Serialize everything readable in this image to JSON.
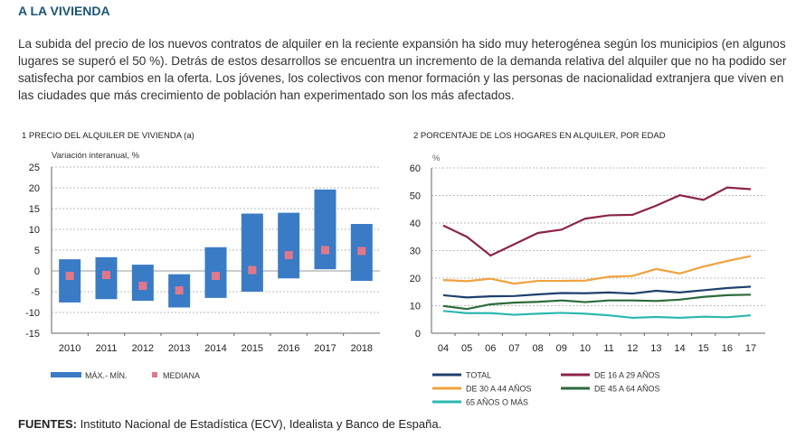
{
  "section_title": "A LA VIVIENDA",
  "paragraph": "La subida del precio de los nuevos contratos de alquiler en la reciente expansión ha sido muy heterogénea según los municipios (en algunos lugares se superó el 50 %). Detrás de estos desarrollos se encuentra un incremento de la demanda relativa del alquiler que no ha podido ser satisfecha por cambios en la oferta. Los jóvenes, los colectivos con menor formación y las personas de nacionalidad extranjera que viven en las ciudades que más crecimiento de población han experimentado son los más afectados.",
  "footer": {
    "label": "FUENTES:",
    "text": " Instituto Nacional de Estadística (ECV), Idealista y Banco de España."
  },
  "chart_data": [
    {
      "type": "bar",
      "title": "1  PRECIO DEL ALQUILER DE VIVIENDA (a)",
      "ylabel": "Variación interanual, %",
      "ylim": [
        -15,
        25
      ],
      "yticks": [
        25,
        20,
        15,
        10,
        5,
        0,
        -5,
        -10,
        -15
      ],
      "grid": true,
      "categories": [
        "2010",
        "2011",
        "2012",
        "2013",
        "2014",
        "2015",
        "2016",
        "2017",
        "2018"
      ],
      "series": [
        {
          "name": "MÁX.- MÍN.",
          "color": "#3a7bc6",
          "max": [
            2.8,
            3.3,
            1.5,
            -0.8,
            5.7,
            13.8,
            14.0,
            19.6,
            11.3
          ],
          "min": [
            -7.6,
            -6.8,
            -7.2,
            -8.8,
            -6.5,
            -5.0,
            -1.8,
            0.4,
            -2.4
          ]
        },
        {
          "name": "MEDIANA",
          "color": "#e0788a",
          "values": [
            -1.2,
            -1.0,
            -3.6,
            -4.7,
            -1.2,
            0.2,
            3.8,
            5.0,
            4.8
          ]
        }
      ],
      "legend_placement": "bottom"
    },
    {
      "type": "line",
      "title": "2  PORCENTAJE DE LOS HOGARES EN ALQUILER, POR EDAD",
      "ylabel": "%",
      "ylim": [
        0,
        60
      ],
      "yticks": [
        60,
        50,
        40,
        30,
        20,
        10,
        0
      ],
      "grid": true,
      "categories": [
        "04",
        "05",
        "06",
        "07",
        "08",
        "09",
        "10",
        "11",
        "12",
        "13",
        "14",
        "15",
        "16",
        "17"
      ],
      "series": [
        {
          "name": "TOTAL",
          "color": "#1f3f6e",
          "values": [
            13.8,
            13.0,
            13.4,
            13.5,
            14.1,
            14.6,
            14.5,
            14.8,
            14.4,
            15.4,
            14.8,
            15.6,
            16.4,
            16.9
          ]
        },
        {
          "name": "DE 16 A 29 AÑOS",
          "color": "#8c2545",
          "values": [
            39.1,
            35.0,
            28.2,
            32.3,
            36.4,
            37.6,
            41.6,
            42.8,
            43.0,
            46.3,
            50.1,
            48.4,
            52.9,
            52.3
          ]
        },
        {
          "name": "DE 30 A 44 AÑOS",
          "color": "#f0a23e",
          "values": [
            19.3,
            18.9,
            19.8,
            18.0,
            19.0,
            19.0,
            19.1,
            20.5,
            20.8,
            23.3,
            21.7,
            24.2,
            26.2,
            28.0
          ]
        },
        {
          "name": "DE 45 A 64 AÑOS",
          "color": "#2c6b3b",
          "values": [
            9.9,
            8.8,
            10.5,
            11.1,
            11.4,
            11.9,
            11.3,
            11.9,
            11.9,
            11.7,
            12.2,
            13.2,
            13.8,
            14.0
          ]
        },
        {
          "name": "65 AÑOS O MÁS",
          "color": "#2bb8b0",
          "values": [
            8.1,
            7.3,
            7.3,
            6.7,
            7.1,
            7.4,
            7.1,
            6.5,
            5.6,
            5.9,
            5.6,
            6.0,
            5.8,
            6.5
          ]
        }
      ],
      "legend_placement": "bottom"
    }
  ]
}
